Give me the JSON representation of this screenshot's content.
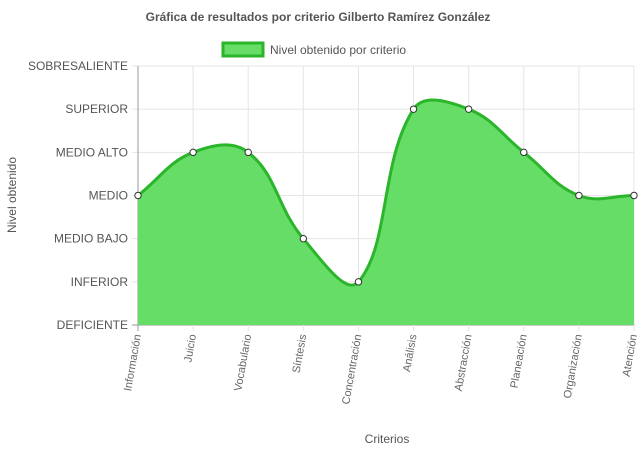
{
  "chart_data": {
    "type": "area",
    "title": "Gráfica de resultados por criterio Gilberto Ramírez González",
    "xlabel": "Criterios",
    "ylabel": "Nivel obtenido",
    "legend": {
      "label": "Nivel obtenido por criterio",
      "position": "top"
    },
    "y_levels": [
      "DEFICIENTE",
      "INFERIOR",
      "MEDIO BAJO",
      "MEDIO",
      "MEDIO ALTO",
      "SUPERIOR",
      "SOBRESALIENTE"
    ],
    "categories": [
      "Información",
      "Juicio",
      "Vocabulario",
      "Síntesis",
      "Concentración",
      "Análisis",
      "Abstracción",
      "Planeación",
      "Organización",
      "Atención"
    ],
    "series": [
      {
        "name": "Nivel obtenido por criterio",
        "values": [
          "MEDIO",
          "MEDIO ALTO",
          "MEDIO ALTO",
          "MEDIO BAJO",
          "INFERIOR",
          "SUPERIOR",
          "SUPERIOR",
          "MEDIO ALTO",
          "MEDIO",
          "MEDIO"
        ]
      }
    ],
    "grid": true,
    "colors": {
      "line": "#2ab52a",
      "fill": "#66dd66",
      "grid": "#e5e5e5",
      "axis": "#999999"
    }
  }
}
